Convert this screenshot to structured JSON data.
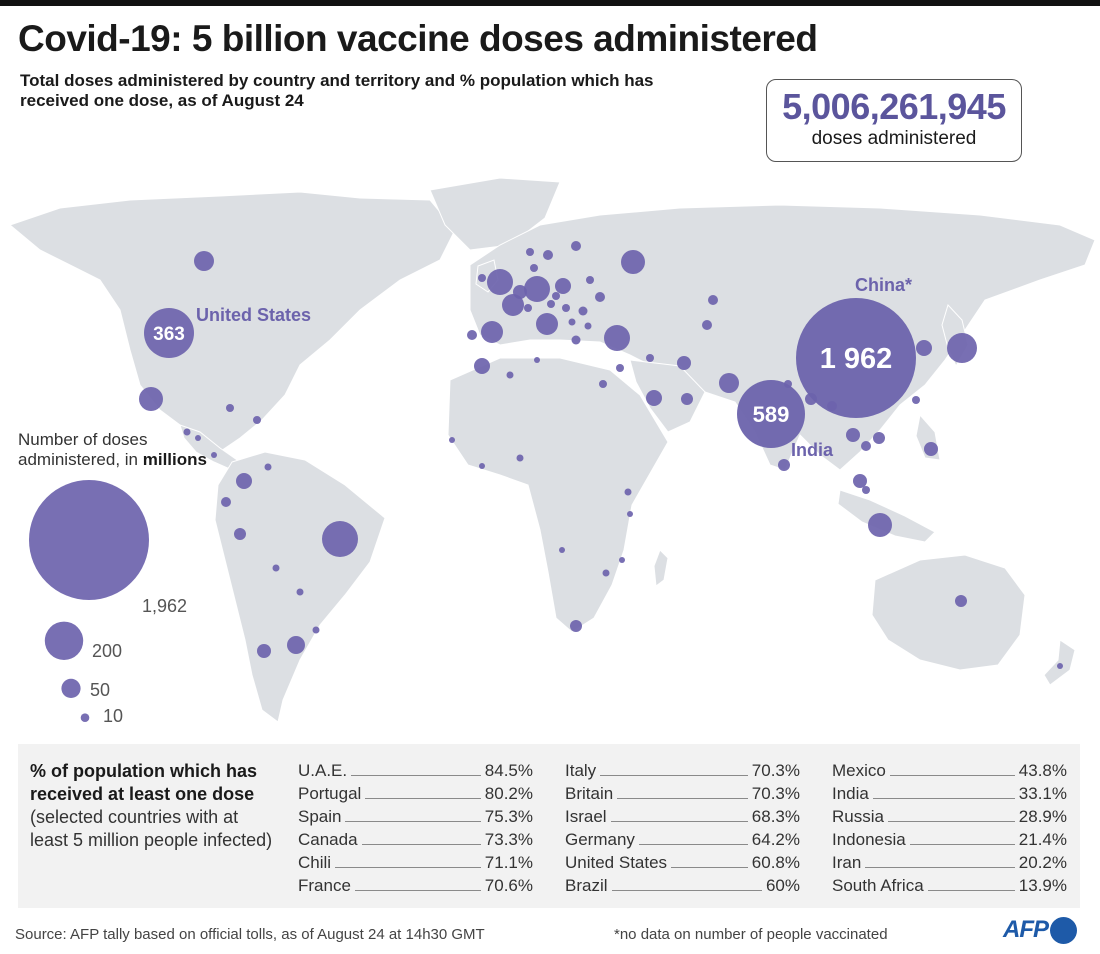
{
  "title": "Covid-19: 5 billion vaccine doses administered",
  "subtitle": "Total doses administered by country and territory and % population which has received one dose, as of August 24",
  "total": {
    "value": "5,006,261,945",
    "label": "doses administered"
  },
  "map_labels": {
    "united_states": {
      "name": "United States",
      "value": "363"
    },
    "india": {
      "name": "India",
      "value": "589"
    },
    "china": {
      "name": "China*",
      "value": "1 962"
    }
  },
  "legend": {
    "title_prefix": "Number of doses administered, in ",
    "title_bold": "millions",
    "sizes": [
      {
        "label": "1,962",
        "value": 1962
      },
      {
        "label": "200",
        "value": 200
      },
      {
        "label": "50",
        "value": 50
      },
      {
        "label": "10",
        "value": 10
      }
    ]
  },
  "table": {
    "title": "% of population which has received at least one dose",
    "subtitle": "(selected countries with at least 5 million people infected)",
    "columns": [
      [
        {
          "country": "U.A.E.",
          "pct": "84.5%"
        },
        {
          "country": "Portugal",
          "pct": "80.2%"
        },
        {
          "country": "Spain",
          "pct": "75.3%"
        },
        {
          "country": "Canada",
          "pct": "73.3%"
        },
        {
          "country": "Chili",
          "pct": "71.1%"
        },
        {
          "country": "France",
          "pct": "70.6%"
        }
      ],
      [
        {
          "country": "Italy",
          "pct": "70.3%"
        },
        {
          "country": "Britain",
          "pct": "70.3%"
        },
        {
          "country": "Israel",
          "pct": "68.3%"
        },
        {
          "country": "Germany",
          "pct": "64.2%"
        },
        {
          "country": "United States",
          "pct": "60.8%"
        },
        {
          "country": "Brazil",
          "pct": "60%"
        }
      ],
      [
        {
          "country": "Mexico",
          "pct": "43.8%"
        },
        {
          "country": "India",
          "pct": "33.1%"
        },
        {
          "country": "Russia",
          "pct": "28.9%"
        },
        {
          "country": "Indonesia",
          "pct": "21.4%"
        },
        {
          "country": "Iran",
          "pct": "20.2%"
        },
        {
          "country": "South Africa",
          "pct": "13.9%"
        }
      ]
    ]
  },
  "source": "Source: AFP tally based on official tolls, as of August 24 at 14h30 GMT",
  "note": "*no data on number of people vaccinated",
  "logo": "AFP",
  "colors": {
    "bubble": "#6c63ac",
    "land": "#dcdfe3",
    "logo": "#1e5aa8"
  }
}
